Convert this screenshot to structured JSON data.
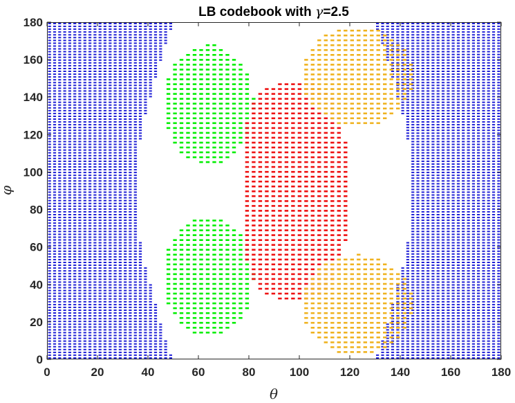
{
  "chart_data": {
    "type": "scatter",
    "title": "LB codebook with γ=2.5",
    "title_parts": {
      "prefix": "LB codebook with ",
      "symbol": "γ",
      "suffix": "=2.5"
    },
    "xlabel": "θ",
    "ylabel": "φ",
    "xlim": [
      0,
      180
    ],
    "ylim": [
      0,
      180
    ],
    "xticks": [
      "0",
      "20",
      "40",
      "60",
      "80",
      "100",
      "120",
      "140",
      "160",
      "180"
    ],
    "yticks": [
      "0",
      "20",
      "40",
      "60",
      "80",
      "100",
      "120",
      "140",
      "160",
      "180"
    ],
    "grid": false,
    "legend": "none",
    "marker": "short horizontal dash",
    "series": [
      {
        "color": "#1f1fd6",
        "regions": [
          {
            "shape": "boundary",
            "side": "left",
            "outline": [
              [
                0,
                0
              ],
              [
                50,
                0
              ],
              [
                47,
                10
              ],
              [
                43,
                30
              ],
              [
                39,
                50
              ],
              [
                36,
                70
              ],
              [
                35,
                90
              ],
              [
                36,
                110
              ],
              [
                39,
                130
              ],
              [
                43,
                150
              ],
              [
                47,
                168
              ],
              [
                50,
                180
              ],
              [
                0,
                180
              ]
            ]
          },
          {
            "shape": "boundary",
            "side": "right",
            "outline": [
              [
                180,
                0
              ],
              [
                130,
                0
              ],
              [
                133,
                10
              ],
              [
                137,
                30
              ],
              [
                141,
                50
              ],
              [
                144,
                70
              ],
              [
                145,
                90
              ],
              [
                144,
                110
              ],
              [
                141,
                130
              ],
              [
                137,
                150
              ],
              [
                133,
                168
              ],
              [
                130,
                180
              ],
              [
                180,
                180
              ]
            ]
          }
        ]
      },
      {
        "color": "#00ee00",
        "regions": [
          {
            "shape": "ellipse",
            "center": [
              64,
              136
            ],
            "radii": [
              18,
              32
            ]
          },
          {
            "shape": "ellipse",
            "center": [
              64,
              44
            ],
            "radii": [
              18,
              32
            ]
          }
        ]
      },
      {
        "color": "#ee1111",
        "regions": [
          {
            "shape": "superellipse",
            "center": [
              98,
              90
            ],
            "radii": [
              21,
              58
            ],
            "exponent": 3
          }
        ]
      },
      {
        "color": "#efb21f",
        "regions": [
          {
            "shape": "ellipse",
            "center": [
              123,
              151
            ],
            "radii": [
              22,
              27
            ]
          },
          {
            "shape": "ellipse",
            "center": [
              123,
              29
            ],
            "radii": [
              22,
              27
            ]
          }
        ]
      }
    ]
  }
}
